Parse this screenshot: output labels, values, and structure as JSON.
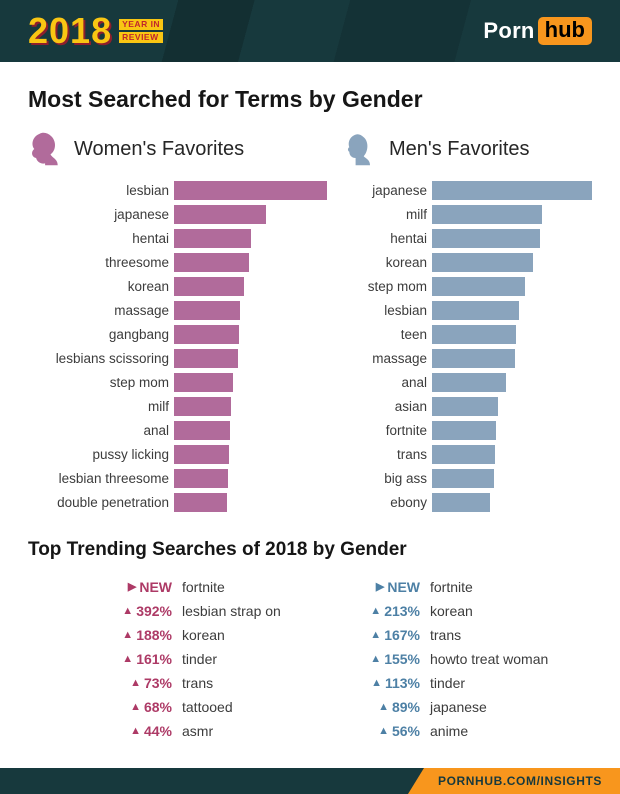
{
  "header": {
    "year": "2018",
    "tagline": [
      "YEAR IN",
      "REVIEW"
    ],
    "brand": {
      "porn": "Porn",
      "hub": "hub"
    }
  },
  "title": "Most Searched for Terms by Gender",
  "chart_data": [
    {
      "type": "bar",
      "orientation": "horizontal",
      "title": "Women's Favorites",
      "color": "#b16b9b",
      "unit": "relative search volume (% of top term)",
      "categories": [
        "lesbian",
        "japanese",
        "hentai",
        "threesome",
        "korean",
        "massage",
        "gangbang",
        "lesbians scissoring",
        "step mom",
        "milf",
        "anal",
        "pussy licking",
        "lesbian threesome",
        "double penetration"
      ],
      "values": [
        100,
        60,
        50,
        49,
        46,
        43,
        42.5,
        42,
        38.5,
        37,
        36.5,
        36,
        35,
        34.5
      ]
    },
    {
      "type": "bar",
      "orientation": "horizontal",
      "title": "Men's Favorites",
      "color": "#8aa4bd",
      "unit": "relative search volume (% of top term)",
      "categories": [
        "japanese",
        "milf",
        "hentai",
        "korean",
        "step mom",
        "lesbian",
        "teen",
        "massage",
        "anal",
        "asian",
        "fortnite",
        "trans",
        "big ass",
        "ebony"
      ],
      "values": [
        100,
        69,
        67.5,
        63,
        58,
        54.5,
        52.5,
        52,
        46,
        41,
        40,
        39.5,
        39,
        36
      ]
    }
  ],
  "trending": {
    "title": "Top Trending Searches of 2018 by Gender",
    "women": {
      "color": "#ad3a66",
      "items": [
        {
          "arrow": "▶",
          "change": "NEW",
          "term": "fortnite"
        },
        {
          "arrow": "▲",
          "change": "392%",
          "term": "lesbian strap on"
        },
        {
          "arrow": "▲",
          "change": "188%",
          "term": "korean"
        },
        {
          "arrow": "▲",
          "change": "161%",
          "term": "tinder"
        },
        {
          "arrow": "▲",
          "change": "73%",
          "term": "trans"
        },
        {
          "arrow": "▲",
          "change": "68%",
          "term": "tattooed"
        },
        {
          "arrow": "▲",
          "change": "44%",
          "term": "asmr"
        }
      ]
    },
    "men": {
      "color": "#4d80a5",
      "items": [
        {
          "arrow": "▶",
          "change": "NEW",
          "term": "fortnite"
        },
        {
          "arrow": "▲",
          "change": "213%",
          "term": "korean"
        },
        {
          "arrow": "▲",
          "change": "167%",
          "term": "trans"
        },
        {
          "arrow": "▲",
          "change": "155%",
          "term": "howto treat woman"
        },
        {
          "arrow": "▲",
          "change": "113%",
          "term": "tinder"
        },
        {
          "arrow": "▲",
          "change": "89%",
          "term": "japanese"
        },
        {
          "arrow": "▲",
          "change": "56%",
          "term": "anime"
        }
      ]
    }
  },
  "footer": {
    "text": "PORNHUB.COM/INSIGHTS"
  }
}
